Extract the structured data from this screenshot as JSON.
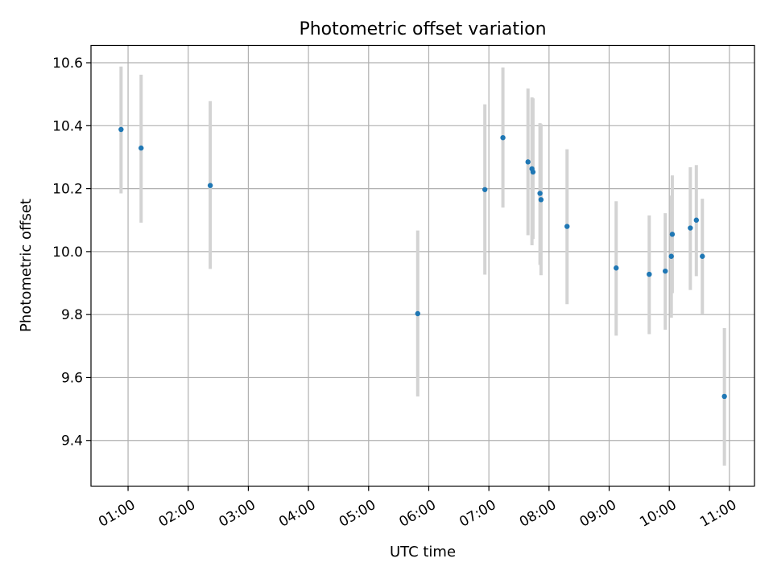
{
  "chart_data": {
    "type": "scatter",
    "title": "Photometric offset variation",
    "xlabel": "UTC time",
    "ylabel": "Photometric offset",
    "xlim": [
      "00:23",
      "11:25"
    ],
    "ylim": [
      9.255,
      10.655
    ],
    "x_ticks": [
      "01:00",
      "02:00",
      "03:00",
      "04:00",
      "05:00",
      "06:00",
      "07:00",
      "08:00",
      "09:00",
      "10:00",
      "11:00"
    ],
    "y_ticks": [
      "9.4",
      "9.6",
      "9.8",
      "10.0",
      "10.2",
      "10.4",
      "10.6"
    ],
    "grid": true,
    "point_color": "#1f77b4",
    "errorbar_color": "#d3d3d3",
    "points": [
      {
        "x": "00:53",
        "y": 10.388,
        "err_low": 10.185,
        "err_high": 10.588
      },
      {
        "x": "01:13",
        "y": 10.329,
        "err_low": 10.092,
        "err_high": 10.562
      },
      {
        "x": "02:22",
        "y": 10.21,
        "err_low": 9.945,
        "err_high": 10.478
      },
      {
        "x": "05:49",
        "y": 9.803,
        "err_low": 9.54,
        "err_high": 10.067
      },
      {
        "x": "06:56",
        "y": 10.197,
        "err_low": 9.927,
        "err_high": 10.468
      },
      {
        "x": "07:14",
        "y": 10.362,
        "err_low": 10.14,
        "err_high": 10.585
      },
      {
        "x": "07:39",
        "y": 10.285,
        "err_low": 10.052,
        "err_high": 10.518
      },
      {
        "x": "07:43",
        "y": 10.263,
        "err_low": 10.02,
        "err_high": 10.49
      },
      {
        "x": "07:44",
        "y": 10.253,
        "err_low": 10.04,
        "err_high": 10.487
      },
      {
        "x": "07:51",
        "y": 10.185,
        "err_low": 9.958,
        "err_high": 10.408
      },
      {
        "x": "07:52",
        "y": 10.165,
        "err_low": 9.925,
        "err_high": 10.405
      },
      {
        "x": "08:18",
        "y": 10.08,
        "err_low": 9.833,
        "err_high": 10.325
      },
      {
        "x": "09:07",
        "y": 9.948,
        "err_low": 9.733,
        "err_high": 10.16
      },
      {
        "x": "09:40",
        "y": 9.928,
        "err_low": 9.738,
        "err_high": 10.115
      },
      {
        "x": "09:56",
        "y": 9.938,
        "err_low": 9.752,
        "err_high": 10.122
      },
      {
        "x": "10:02",
        "y": 9.985,
        "err_low": 9.79,
        "err_high": 10.178
      },
      {
        "x": "10:03",
        "y": 10.055,
        "err_low": 9.868,
        "err_high": 10.242
      },
      {
        "x": "10:21",
        "y": 10.075,
        "err_low": 9.878,
        "err_high": 10.268
      },
      {
        "x": "10:27",
        "y": 10.1,
        "err_low": 9.922,
        "err_high": 10.275
      },
      {
        "x": "10:33",
        "y": 9.985,
        "err_low": 9.8,
        "err_high": 10.168
      },
      {
        "x": "10:55",
        "y": 9.54,
        "err_low": 9.32,
        "err_high": 9.757
      }
    ]
  }
}
